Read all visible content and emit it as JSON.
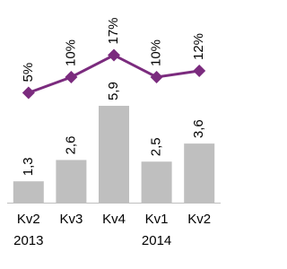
{
  "chart_data": {
    "type": "combo",
    "categories": [
      "Kv2",
      "Kv3",
      "Kv4",
      "Kv1",
      "Kv2"
    ],
    "years": [
      "2013",
      null,
      null,
      "2014",
      null
    ],
    "series": [
      {
        "type": "bar",
        "color": "#bfbfbf",
        "values": [
          1.3,
          2.6,
          5.9,
          2.5,
          3.6
        ],
        "value_labels": [
          "1,3",
          "2,6",
          "5,9",
          "2,5",
          "3,6"
        ]
      },
      {
        "type": "line",
        "color": "#7b2b7e",
        "values": [
          5,
          10,
          17,
          10,
          12
        ],
        "value_labels": [
          "5%",
          "10%",
          "17%",
          "10%",
          "12%"
        ]
      }
    ]
  }
}
